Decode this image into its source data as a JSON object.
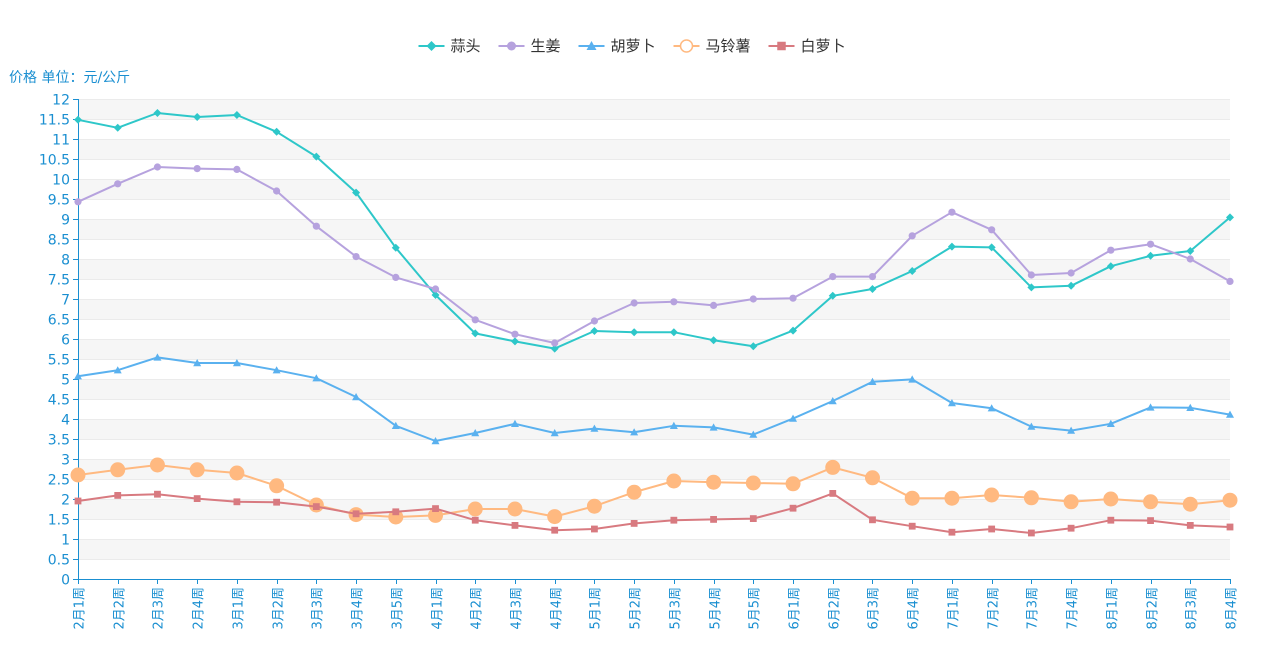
{
  "chart_data": {
    "type": "line",
    "unit_label": "价格 单位：元/公斤",
    "ylim": [
      0,
      12
    ],
    "y_step": 0.5,
    "y_ticks": [
      "0",
      "0.5",
      "1",
      "1.5",
      "2",
      "2.5",
      "3",
      "3.5",
      "4",
      "4.5",
      "5",
      "5.5",
      "6",
      "6.5",
      "7",
      "7.5",
      "8",
      "8.5",
      "9",
      "9.5",
      "10",
      "10.5",
      "11",
      "11.5",
      "12"
    ],
    "categories": [
      "2月1周",
      "2月2周",
      "2月3周",
      "2月4周",
      "3月1周",
      "3月2周",
      "3月3周",
      "3月4周",
      "3月5周",
      "4月1周",
      "4月2周",
      "4月3周",
      "4月4周",
      "5月1周",
      "5月2周",
      "5月3周",
      "5月4周",
      "5月5周",
      "6月1周",
      "6月2周",
      "6月3周",
      "6月4周",
      "7月1周",
      "7月2周",
      "7月3周",
      "7月4周",
      "8月1周",
      "8月2周",
      "8月3周",
      "8月4周"
    ],
    "series": [
      {
        "name": "蒜头",
        "color": "#2ec7c9",
        "symbol": "diamond",
        "values": [
          11.48,
          11.28,
          11.65,
          11.55,
          11.6,
          11.18,
          10.56,
          9.66,
          8.28,
          7.1,
          6.14,
          5.94,
          5.76,
          6.2,
          6.17,
          6.17,
          5.97,
          5.82,
          6.21,
          7.08,
          7.25,
          7.7,
          8.31,
          8.29,
          7.29,
          7.33,
          7.82,
          8.08,
          8.2,
          9.04
        ]
      },
      {
        "name": "生姜",
        "color": "#b6a2de",
        "symbol": "circle",
        "values": [
          9.43,
          9.88,
          10.3,
          10.26,
          10.24,
          9.7,
          8.82,
          8.06,
          7.54,
          7.25,
          6.48,
          6.12,
          5.9,
          6.45,
          6.9,
          6.93,
          6.84,
          7.0,
          7.02,
          7.56,
          7.56,
          8.58,
          9.17,
          8.73,
          7.6,
          7.65,
          8.22,
          8.37,
          8.0,
          7.44
        ]
      },
      {
        "name": "胡萝卜",
        "color": "#5ab1ef",
        "symbol": "triangle",
        "values": [
          5.07,
          5.22,
          5.54,
          5.4,
          5.4,
          5.22,
          5.02,
          4.55,
          3.83,
          3.45,
          3.65,
          3.88,
          3.65,
          3.76,
          3.67,
          3.83,
          3.79,
          3.61,
          4.01,
          4.45,
          4.93,
          4.99,
          4.4,
          4.27,
          3.81,
          3.71,
          3.88,
          4.29,
          4.28,
          4.11
        ]
      },
      {
        "name": "马铃薯",
        "color": "#ffb980",
        "symbol": "circle-hollow",
        "values": [
          2.6,
          2.73,
          2.85,
          2.73,
          2.65,
          2.33,
          1.85,
          1.61,
          1.55,
          1.59,
          1.75,
          1.75,
          1.56,
          1.82,
          2.17,
          2.45,
          2.42,
          2.4,
          2.38,
          2.79,
          2.53,
          2.02,
          2.02,
          2.1,
          2.03,
          1.93,
          2.0,
          1.93,
          1.87,
          1.97
        ]
      },
      {
        "name": "白萝卜",
        "color": "#d87a80",
        "symbol": "square",
        "values": [
          1.95,
          2.09,
          2.12,
          2.01,
          1.93,
          1.92,
          1.81,
          1.63,
          1.68,
          1.76,
          1.47,
          1.34,
          1.22,
          1.25,
          1.39,
          1.47,
          1.49,
          1.51,
          1.77,
          2.14,
          1.48,
          1.32,
          1.17,
          1.25,
          1.15,
          1.27,
          1.47,
          1.46,
          1.34,
          1.3
        ]
      }
    ]
  }
}
